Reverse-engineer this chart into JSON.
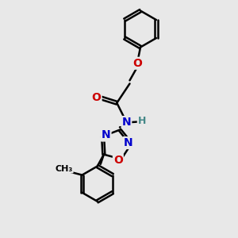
{
  "background_color": "#e8e8e8",
  "bond_color": "#000000",
  "bond_width": 1.8,
  "atom_colors": {
    "O": "#cc0000",
    "N": "#0000cc",
    "H": "#448888",
    "C": "#000000"
  },
  "font_size_atom": 10,
  "font_size_h": 9
}
